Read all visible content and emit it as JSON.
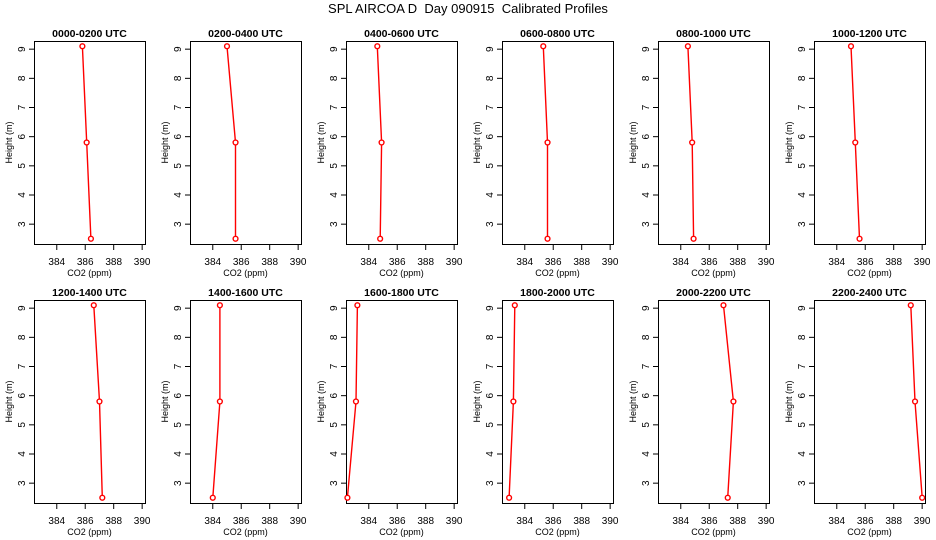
{
  "figure": {
    "title": "SPL AIRCOA D  Day 090915  Calibrated Profiles"
  },
  "colors": {
    "series": "#ff0000",
    "axis": "#000000"
  },
  "chart_data": [
    {
      "type": "line",
      "title": "0000-0200 UTC",
      "xlabel": "CO2 (ppm)",
      "ylabel": "Height (m)",
      "xlim": [
        382.4,
        390.2
      ],
      "ylim": [
        2.32,
        9.28
      ],
      "xticks": [
        384,
        386,
        388,
        390
      ],
      "yticks": [
        3,
        4,
        5,
        6,
        7,
        8,
        9
      ],
      "x": [
        385.8,
        386.1,
        386.4
      ],
      "y": [
        9.1,
        5.8,
        2.5
      ]
    },
    {
      "type": "line",
      "title": "0200-0400 UTC",
      "xlabel": "CO2 (ppm)",
      "ylabel": "Height (m)",
      "xlim": [
        382.4,
        390.2
      ],
      "ylim": [
        2.32,
        9.28
      ],
      "xticks": [
        384,
        386,
        388,
        390
      ],
      "yticks": [
        3,
        4,
        5,
        6,
        7,
        8,
        9
      ],
      "x": [
        385.0,
        385.6,
        385.6
      ],
      "y": [
        9.1,
        5.8,
        2.5
      ]
    },
    {
      "type": "line",
      "title": "0400-0600 UTC",
      "xlabel": "CO2 (ppm)",
      "ylabel": "Height (m)",
      "xlim": [
        382.4,
        390.2
      ],
      "ylim": [
        2.32,
        9.28
      ],
      "xticks": [
        384,
        386,
        388,
        390
      ],
      "yticks": [
        3,
        4,
        5,
        6,
        7,
        8,
        9
      ],
      "x": [
        384.6,
        384.9,
        384.8
      ],
      "y": [
        9.1,
        5.8,
        2.5
      ]
    },
    {
      "type": "line",
      "title": "0600-0800 UTC",
      "xlabel": "CO2 (ppm)",
      "ylabel": "Height (m)",
      "xlim": [
        382.4,
        390.2
      ],
      "ylim": [
        2.32,
        9.28
      ],
      "xticks": [
        384,
        386,
        388,
        390
      ],
      "yticks": [
        3,
        4,
        5,
        6,
        7,
        8,
        9
      ],
      "x": [
        385.3,
        385.6,
        385.6
      ],
      "y": [
        9.1,
        5.8,
        2.5
      ]
    },
    {
      "type": "line",
      "title": "0800-1000 UTC",
      "xlabel": "CO2 (ppm)",
      "ylabel": "Height (m)",
      "xlim": [
        382.4,
        390.2
      ],
      "ylim": [
        2.32,
        9.28
      ],
      "xticks": [
        384,
        386,
        388,
        390
      ],
      "yticks": [
        3,
        4,
        5,
        6,
        7,
        8,
        9
      ],
      "x": [
        384.5,
        384.8,
        384.9
      ],
      "y": [
        9.1,
        5.8,
        2.5
      ]
    },
    {
      "type": "line",
      "title": "1000-1200 UTC",
      "xlabel": "CO2 (ppm)",
      "ylabel": "Height (m)",
      "xlim": [
        382.4,
        390.2
      ],
      "ylim": [
        2.32,
        9.28
      ],
      "xticks": [
        384,
        386,
        388,
        390
      ],
      "yticks": [
        3,
        4,
        5,
        6,
        7,
        8,
        9
      ],
      "x": [
        385.0,
        385.3,
        385.6
      ],
      "y": [
        9.1,
        5.8,
        2.5
      ]
    },
    {
      "type": "line",
      "title": "1200-1400 UTC",
      "xlabel": "CO2 (ppm)",
      "ylabel": "Height (m)",
      "xlim": [
        382.4,
        390.2
      ],
      "ylim": [
        2.32,
        9.28
      ],
      "xticks": [
        384,
        386,
        388,
        390
      ],
      "yticks": [
        3,
        4,
        5,
        6,
        7,
        8,
        9
      ],
      "x": [
        386.6,
        387.0,
        387.2
      ],
      "y": [
        9.1,
        5.8,
        2.5
      ]
    },
    {
      "type": "line",
      "title": "1400-1600 UTC",
      "xlabel": "CO2 (ppm)",
      "ylabel": "Height (m)",
      "xlim": [
        382.4,
        390.2
      ],
      "ylim": [
        2.32,
        9.28
      ],
      "xticks": [
        384,
        386,
        388,
        390
      ],
      "yticks": [
        3,
        4,
        5,
        6,
        7,
        8,
        9
      ],
      "x": [
        384.5,
        384.5,
        384.0
      ],
      "y": [
        9.1,
        5.8,
        2.5
      ]
    },
    {
      "type": "line",
      "title": "1600-1800 UTC",
      "xlabel": "CO2 (ppm)",
      "ylabel": "Height (m)",
      "xlim": [
        382.4,
        390.2
      ],
      "ylim": [
        2.32,
        9.28
      ],
      "xticks": [
        384,
        386,
        388,
        390
      ],
      "yticks": [
        3,
        4,
        5,
        6,
        7,
        8,
        9
      ],
      "x": [
        383.2,
        383.1,
        382.5
      ],
      "y": [
        9.1,
        5.8,
        2.5
      ]
    },
    {
      "type": "line",
      "title": "1800-2000 UTC",
      "xlabel": "CO2 (ppm)",
      "ylabel": "Height (m)",
      "xlim": [
        382.4,
        390.2
      ],
      "ylim": [
        2.32,
        9.28
      ],
      "xticks": [
        384,
        386,
        388,
        390
      ],
      "yticks": [
        3,
        4,
        5,
        6,
        7,
        8,
        9
      ],
      "x": [
        383.3,
        383.2,
        382.9
      ],
      "y": [
        9.1,
        5.8,
        2.5
      ]
    },
    {
      "type": "line",
      "title": "2000-2200 UTC",
      "xlabel": "CO2 (ppm)",
      "ylabel": "Height (m)",
      "xlim": [
        382.4,
        390.2
      ],
      "ylim": [
        2.32,
        9.28
      ],
      "xticks": [
        384,
        386,
        388,
        390
      ],
      "yticks": [
        3,
        4,
        5,
        6,
        7,
        8,
        9
      ],
      "x": [
        387.0,
        387.7,
        387.3
      ],
      "y": [
        9.1,
        5.8,
        2.5
      ]
    },
    {
      "type": "line",
      "title": "2200-2400 UTC",
      "xlabel": "CO2 (ppm)",
      "ylabel": "Height (m)",
      "xlim": [
        382.4,
        390.2
      ],
      "ylim": [
        2.32,
        9.28
      ],
      "xticks": [
        384,
        386,
        388,
        390
      ],
      "yticks": [
        3,
        4,
        5,
        6,
        7,
        8,
        9
      ],
      "x": [
        389.2,
        389.5,
        390.0
      ],
      "y": [
        9.1,
        5.8,
        2.5
      ]
    }
  ]
}
